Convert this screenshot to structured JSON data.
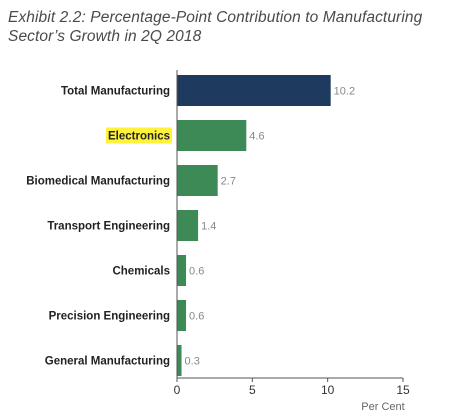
{
  "title_line1": "Exhibit 2.2: Percentage-Point Contribution to Manufacturing",
  "title_line2": "Sector’s Growth in 2Q 2018",
  "chart_data": {
    "type": "bar",
    "orientation": "horizontal",
    "categories": [
      "Total Manufacturing",
      "Electronics",
      "Biomedical Manufacturing",
      "Transport Engineering",
      "Chemicals",
      "Precision Engineering",
      "General Manufacturing"
    ],
    "values": [
      10.2,
      4.6,
      2.7,
      1.4,
      0.6,
      0.6,
      0.3
    ],
    "value_labels": [
      "10.2",
      "4.6",
      "2.7",
      "1.4",
      "0.6",
      "0.6",
      "0.3"
    ],
    "highlighted_category": "Electronics",
    "xlabel": "Per Cent",
    "xlim": [
      0,
      15
    ],
    "xticks": [
      "0",
      "5",
      "10",
      "15"
    ],
    "grid": false,
    "colors": {
      "total_bar": "#1f3a5f",
      "sector_bar": "#3d8a57",
      "highlight": "#fff23a"
    }
  }
}
